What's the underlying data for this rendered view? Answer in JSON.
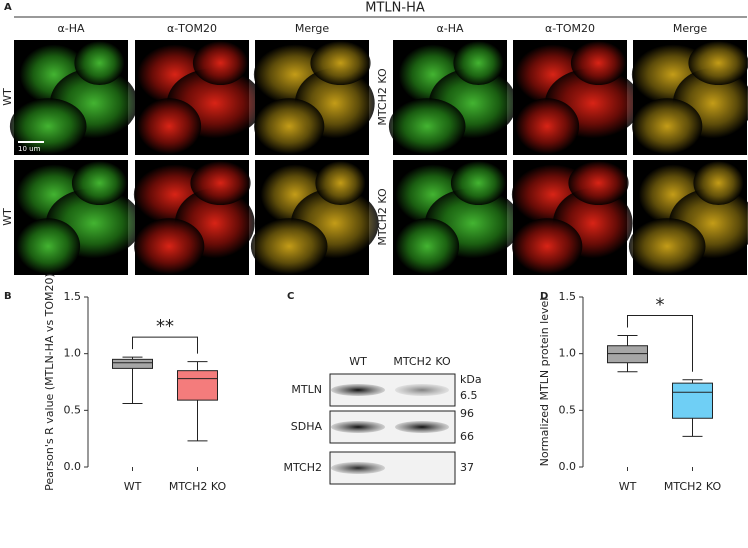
{
  "panel_a": {
    "label": "A",
    "title": "MTLN-HA",
    "scale_bar": "10 um",
    "left": {
      "columns": [
        "α-HA",
        "α-TOM20",
        "Merge"
      ],
      "rows": [
        "WT",
        "WT"
      ]
    },
    "right": {
      "columns": [
        "α-HA",
        "α-TOM20",
        "Merge"
      ],
      "rows": [
        "MTCH2 KO",
        "MTCH2 KO"
      ]
    }
  },
  "panel_c": {
    "label": "C",
    "lanes": [
      "WT",
      "MTCH2 KO"
    ],
    "unit": "kDa",
    "blots": [
      {
        "name": "MTLN",
        "markers": [
          "6.5"
        ]
      },
      {
        "name": "SDHA",
        "markers": [
          "96",
          "66"
        ]
      },
      {
        "name": "MTCH2",
        "markers": [
          "37"
        ]
      }
    ]
  },
  "chart_data": [
    {
      "type": "box",
      "panel_label": "B",
      "ylabel": "Pearson's R value (MTLN-HA vs TOM20)",
      "annotation": "**",
      "categories": [
        "WT",
        "MTCH2 KO"
      ],
      "boxes": [
        {
          "min": 0.56,
          "q1": 0.87,
          "median": 0.92,
          "q3": 0.95,
          "max": 0.97,
          "color": "#a6a6a6"
        },
        {
          "min": 0.23,
          "q1": 0.59,
          "median": 0.78,
          "q3": 0.85,
          "max": 0.93,
          "color": "#f47c7c"
        }
      ],
      "ylim": [
        0,
        1.5
      ],
      "yticks": [
        {
          "value": 0,
          "label": "0.0"
        },
        0.5,
        {
          "value": 1,
          "label": "1.0"
        },
        1.5
      ]
    },
    {
      "type": "box",
      "panel_label": "D",
      "ylabel": "Normalized MTLN protein level",
      "annotation": "*",
      "categories": [
        "WT",
        "MTCH2 KO"
      ],
      "boxes": [
        {
          "min": 0.84,
          "q1": 0.92,
          "median": 1.0,
          "q3": 1.07,
          "max": 1.16,
          "color": "#a6a6a6"
        },
        {
          "min": 0.27,
          "q1": 0.43,
          "median": 0.66,
          "q3": 0.74,
          "max": 0.77,
          "color": "#6fcff5"
        }
      ],
      "ylim": [
        0,
        1.5
      ],
      "yticks": [
        {
          "value": 0,
          "label": "0.0"
        },
        0.5,
        {
          "value": 1,
          "label": "1.0"
        },
        1.5
      ]
    }
  ]
}
